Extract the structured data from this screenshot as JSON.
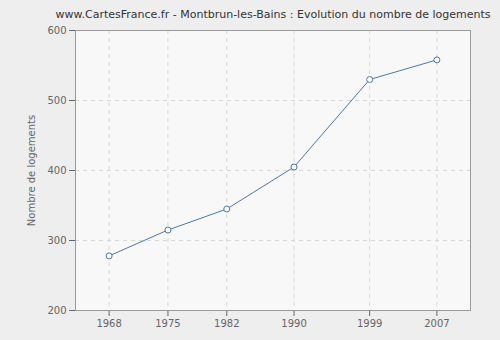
{
  "chart_data": {
    "type": "line",
    "title": "www.CartesFrance.fr - Montbrun-les-Bains : Evolution du nombre de logements",
    "y_label": "Nombre de logements",
    "x": [
      1968,
      1975,
      1982,
      1990,
      1999,
      2007
    ],
    "values": [
      278,
      315,
      345,
      405,
      530,
      558
    ],
    "color": "#4a79a8",
    "marker": "circle",
    "xlim": [
      1964,
      2011
    ],
    "xticks": [
      1968,
      1975,
      1982,
      1990,
      1999,
      2007
    ],
    "ylim": [
      200,
      600
    ],
    "yticks": [
      200,
      300,
      400,
      500,
      600
    ],
    "grid": true
  }
}
